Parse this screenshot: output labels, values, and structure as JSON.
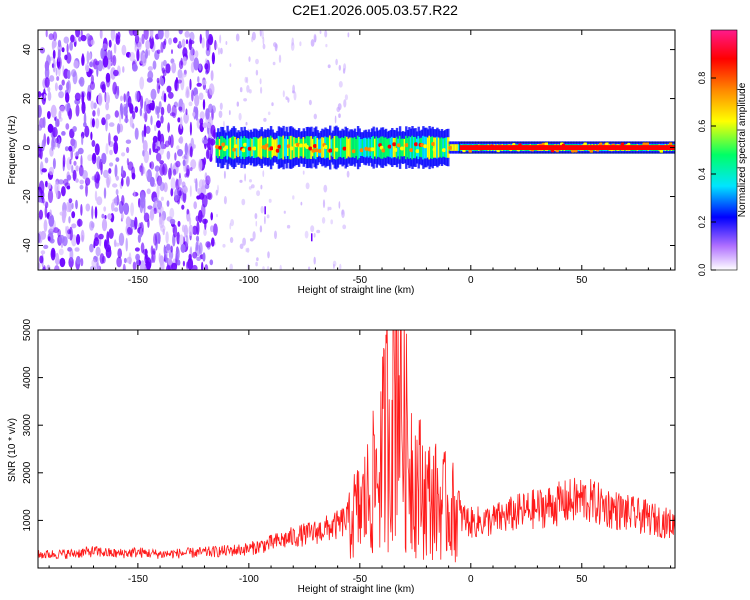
{
  "title": "C2E1.2026.005.03.57.R22",
  "chart_data": [
    {
      "type": "heatmap",
      "name": "spectrogram",
      "xlabel": "Height of straight line (km)",
      "ylabel": "Frequency (Hz)",
      "xlim": [
        -195,
        92
      ],
      "ylim": [
        -50,
        48
      ],
      "xticks": [
        -150,
        -100,
        -50,
        0,
        50
      ],
      "yticks": [
        -40,
        -20,
        0,
        20,
        40
      ],
      "colorbar": {
        "label": "Normalized spectral amplitude",
        "range": [
          0,
          1
        ],
        "ticks": [
          0.0,
          0.2,
          0.4,
          0.6,
          0.8
        ],
        "tick_labels": [
          "0.0",
          "0.2",
          "0.4",
          "0.6",
          "0.8"
        ],
        "colormap": [
          "#ffffff",
          "#7a00ff",
          "#0000ff",
          "#00e5ff",
          "#00ff66",
          "#ffff00",
          "#ff8800",
          "#ff0000",
          "#ff1a8c"
        ]
      },
      "features": [
        {
          "description": "scattered low-amplitude purple noise",
          "x_range": [
            -195,
            -115
          ],
          "freq_range": [
            -50,
            48
          ]
        },
        {
          "description": "signal band around 0 Hz",
          "x_range": [
            -115,
            92
          ],
          "freq_center": 0
        }
      ]
    },
    {
      "type": "line",
      "name": "snr",
      "xlabel": "Height of straight line (km)",
      "ylabel": "SNR (10 * v/v)",
      "xlim": [
        -195,
        92
      ],
      "ylim": [
        0,
        5000
      ],
      "xticks": [
        -150,
        -100,
        -50,
        0,
        50
      ],
      "yticks": [
        1000,
        2000,
        3000,
        4000,
        5000
      ],
      "color": "#ff0000",
      "series": [
        {
          "name": "SNR",
          "x": [
            -195,
            -180,
            -170,
            -160,
            -150,
            -140,
            -130,
            -120,
            -110,
            -100,
            -90,
            -80,
            -70,
            -60,
            -50,
            -45,
            -40,
            -38,
            -35,
            -33,
            -30,
            -25,
            -20,
            -15,
            -10,
            -5,
            0,
            10,
            20,
            30,
            40,
            50,
            60,
            70,
            80,
            92
          ],
          "values": [
            280,
            300,
            350,
            300,
            330,
            290,
            310,
            330,
            360,
            400,
            520,
            650,
            750,
            900,
            1200,
            1600,
            2300,
            3000,
            3600,
            4700,
            2800,
            1900,
            1500,
            1400,
            1250,
            1100,
            950,
            1000,
            1150,
            1250,
            1350,
            1450,
            1300,
            1150,
            1050,
            900
          ]
        }
      ]
    }
  ]
}
